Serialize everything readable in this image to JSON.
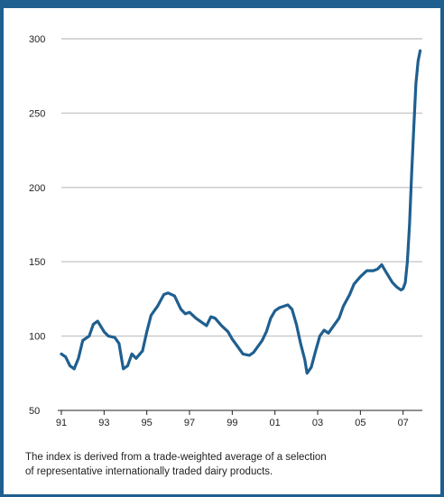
{
  "colors": {
    "accent": "#1f5f8f",
    "line": "#1f5f8f",
    "grid": "#c8c8c8"
  },
  "caption": {
    "line1": "The index is derived from a trade-weighted average of a selection",
    "line2": "of representative internationally traded dairy products."
  },
  "chart_data": {
    "type": "line",
    "title": "",
    "xlabel": "",
    "ylabel": "",
    "ylim": [
      50,
      300
    ],
    "xlim": [
      1991.0,
      2007.9
    ],
    "grid": true,
    "y_ticks": [
      {
        "value": 300,
        "label": "300"
      },
      {
        "value": 250,
        "label": "250"
      },
      {
        "value": 200,
        "label": "200"
      },
      {
        "value": 150,
        "label": "150"
      },
      {
        "value": 100,
        "label": "100"
      },
      {
        "value": 50,
        "label": "50"
      }
    ],
    "x_ticks": [
      {
        "value": 1991,
        "label": "91"
      },
      {
        "value": 1993,
        "label": "93"
      },
      {
        "value": 1995,
        "label": "95"
      },
      {
        "value": 1997,
        "label": "97"
      },
      {
        "value": 1999,
        "label": "99"
      },
      {
        "value": 2001,
        "label": "01"
      },
      {
        "value": 2003,
        "label": "03"
      },
      {
        "value": 2005,
        "label": "05"
      },
      {
        "value": 2007,
        "label": "07"
      }
    ],
    "series": [
      {
        "x": [
          1991.0,
          1991.2,
          1991.4,
          1991.6,
          1991.8,
          1992.0,
          1992.3,
          1992.5,
          1992.7,
          1993.0,
          1993.2,
          1993.5,
          1993.7,
          1993.9,
          1994.1,
          1994.3,
          1994.5,
          1994.8,
          1995.0,
          1995.2,
          1995.5,
          1995.8,
          1996.0,
          1996.3,
          1996.6,
          1996.8,
          1997.0,
          1997.3,
          1997.6,
          1997.8,
          1998.0,
          1998.2,
          1998.5,
          1998.8,
          1999.0,
          1999.2,
          1999.5,
          1999.8,
          2000.0,
          2000.2,
          2000.4,
          2000.6,
          2000.8,
          2001.0,
          2001.2,
          2001.4,
          2001.6,
          2001.8,
          2002.0,
          2002.2,
          2002.4,
          2002.5,
          2002.7,
          2002.9,
          2003.1,
          2003.3,
          2003.5,
          2003.7,
          2004.0,
          2004.2,
          2004.5,
          2004.7,
          2005.0,
          2005.3,
          2005.6,
          2005.8,
          2006.0,
          2006.2,
          2006.5,
          2006.7,
          2006.9,
          2007.0,
          2007.1,
          2007.2,
          2007.3,
          2007.4,
          2007.5,
          2007.6,
          2007.7,
          2007.8
        ],
        "values": [
          88,
          86,
          80,
          78,
          85,
          97,
          100,
          108,
          110,
          103,
          100,
          99,
          95,
          78,
          80,
          88,
          85,
          90,
          103,
          114,
          120,
          128,
          129,
          127,
          118,
          115,
          116,
          112,
          109,
          107,
          113,
          112,
          107,
          103,
          98,
          94,
          88,
          87,
          89,
          93,
          97,
          103,
          112,
          117,
          119,
          120,
          121,
          118,
          108,
          95,
          84,
          75,
          79,
          90,
          100,
          104,
          102,
          106,
          112,
          120,
          128,
          135,
          140,
          144,
          144,
          145,
          148,
          143,
          136,
          133,
          131,
          132,
          136,
          150,
          175,
          210,
          240,
          270,
          285,
          292
        ]
      }
    ]
  }
}
